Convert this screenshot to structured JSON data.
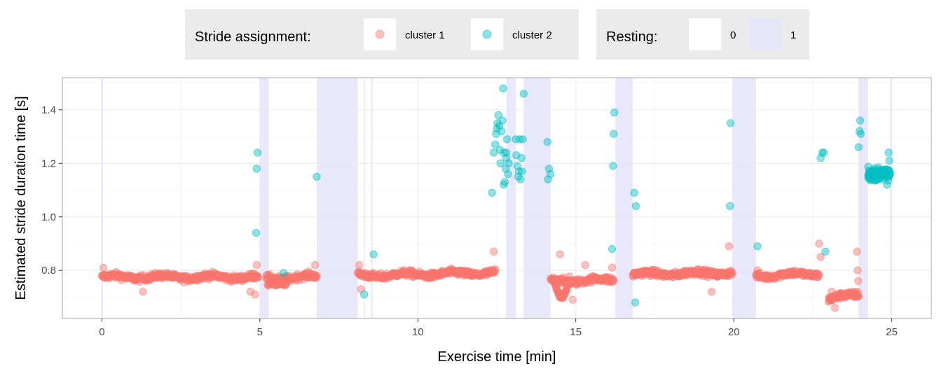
{
  "chart_data": {
    "type": "scatter",
    "title": "",
    "xlabel": "Exercise time [min]",
    "ylabel": "Estimated stride duration time [s]",
    "xlim": [
      -1.25,
      26.25
    ],
    "ylim": [
      0.62,
      1.52
    ],
    "x_ticks": [
      0,
      5,
      10,
      15,
      20,
      25
    ],
    "y_ticks": [
      0.8,
      1.0,
      1.2,
      1.4
    ],
    "x_tick_labels": [
      "0",
      "5",
      "10",
      "15",
      "20",
      "25"
    ],
    "y_tick_labels": [
      "0.8",
      "1.0",
      "1.2",
      "1.4"
    ],
    "grid": true,
    "legend_position": "top",
    "legend": {
      "color_title": "Stride assignment:",
      "color_entries": [
        {
          "label": "cluster 1",
          "color": "#F8766D"
        },
        {
          "label": "cluster 2",
          "color": "#00BFC4"
        }
      ],
      "fill_title": "Resting:",
      "fill_entries": [
        {
          "label": "0",
          "color": "#FFFFFF"
        },
        {
          "label": "1",
          "color": "#E6E6FA"
        }
      ]
    },
    "resting_intervals": [
      [
        -0.02,
        0.03
      ],
      [
        5.0,
        5.28
      ],
      [
        6.8,
        8.1
      ],
      [
        8.3,
        8.33
      ],
      [
        8.52,
        8.57
      ],
      [
        12.8,
        13.1
      ],
      [
        13.35,
        14.2
      ],
      [
        16.25,
        16.8
      ],
      [
        19.95,
        20.7
      ],
      [
        23.95,
        24.25
      ],
      [
        24.95,
        24.99
      ]
    ],
    "cluster1_segments": [
      {
        "start": 0.0,
        "end": 4.95,
        "base": 0.775,
        "slope": 0.0,
        "count": 320
      },
      {
        "start": 5.2,
        "end": 6.8,
        "base": 0.77,
        "slope": 0.004,
        "count": 100
      },
      {
        "start": 8.1,
        "end": 12.45,
        "base": 0.78,
        "slope": 0.0025,
        "count": 280
      },
      {
        "start": 14.2,
        "end": 16.2,
        "base": 0.76,
        "slope": 0.002,
        "count": 120
      },
      {
        "start": 16.8,
        "end": 19.95,
        "base": 0.785,
        "slope": 0.002,
        "count": 220
      },
      {
        "start": 20.7,
        "end": 22.7,
        "base": 0.78,
        "slope": 0.004,
        "count": 120
      },
      {
        "start": 23.0,
        "end": 23.95,
        "base": 0.69,
        "slope": 0.025,
        "count": 80
      }
    ],
    "cluster1_points": [
      {
        "x": 0.05,
        "y": 0.81
      },
      {
        "x": 4.9,
        "y": 0.82
      },
      {
        "x": 4.85,
        "y": 0.71
      },
      {
        "x": 4.7,
        "y": 0.72
      },
      {
        "x": 1.3,
        "y": 0.72
      },
      {
        "x": 6.75,
        "y": 0.82
      },
      {
        "x": 8.15,
        "y": 0.82
      },
      {
        "x": 8.2,
        "y": 0.73
      },
      {
        "x": 12.4,
        "y": 0.87
      },
      {
        "x": 14.5,
        "y": 0.86
      },
      {
        "x": 14.9,
        "y": 0.69
      },
      {
        "x": 15.3,
        "y": 0.82
      },
      {
        "x": 16.15,
        "y": 0.81
      },
      {
        "x": 19.3,
        "y": 0.72
      },
      {
        "x": 19.85,
        "y": 0.89
      },
      {
        "x": 20.75,
        "y": 0.8
      },
      {
        "x": 22.7,
        "y": 0.9
      },
      {
        "x": 22.75,
        "y": 0.85
      },
      {
        "x": 23.9,
        "y": 0.87
      },
      {
        "x": 23.92,
        "y": 0.8
      },
      {
        "x": 23.94,
        "y": 0.76
      },
      {
        "x": 23.1,
        "y": 0.72
      },
      {
        "x": 23.2,
        "y": 0.66
      }
    ],
    "cluster2_points": [
      {
        "x": 4.93,
        "y": 1.24
      },
      {
        "x": 4.9,
        "y": 1.18
      },
      {
        "x": 4.88,
        "y": 0.94
      },
      {
        "x": 5.75,
        "y": 0.79
      },
      {
        "x": 6.8,
        "y": 1.15
      },
      {
        "x": 8.3,
        "y": 0.71
      },
      {
        "x": 8.6,
        "y": 0.86
      },
      {
        "x": 12.35,
        "y": 1.09
      },
      {
        "x": 12.4,
        "y": 1.24
      },
      {
        "x": 12.45,
        "y": 1.27
      },
      {
        "x": 12.48,
        "y": 1.31
      },
      {
        "x": 12.5,
        "y": 1.33
      },
      {
        "x": 12.52,
        "y": 1.35
      },
      {
        "x": 12.55,
        "y": 1.38
      },
      {
        "x": 12.58,
        "y": 1.34
      },
      {
        "x": 12.6,
        "y": 1.25
      },
      {
        "x": 12.62,
        "y": 1.2
      },
      {
        "x": 12.65,
        "y": 1.32
      },
      {
        "x": 12.68,
        "y": 1.36
      },
      {
        "x": 12.7,
        "y": 1.48
      },
      {
        "x": 12.72,
        "y": 1.24
      },
      {
        "x": 12.75,
        "y": 1.13
      },
      {
        "x": 12.78,
        "y": 1.18
      },
      {
        "x": 12.8,
        "y": 1.22
      },
      {
        "x": 12.82,
        "y": 1.29
      },
      {
        "x": 12.85,
        "y": 1.16
      },
      {
        "x": 12.72,
        "y": 1.12
      },
      {
        "x": 12.8,
        "y": 1.24
      },
      {
        "x": 12.88,
        "y": 1.2
      },
      {
        "x": 13.1,
        "y": 1.29
      },
      {
        "x": 13.12,
        "y": 1.23
      },
      {
        "x": 13.15,
        "y": 1.19
      },
      {
        "x": 13.18,
        "y": 1.15
      },
      {
        "x": 13.2,
        "y": 1.17
      },
      {
        "x": 13.22,
        "y": 1.29
      },
      {
        "x": 13.25,
        "y": 1.14
      },
      {
        "x": 13.28,
        "y": 1.22
      },
      {
        "x": 13.3,
        "y": 1.17
      },
      {
        "x": 13.35,
        "y": 1.46
      },
      {
        "x": 13.32,
        "y": 1.29
      },
      {
        "x": 14.1,
        "y": 1.28
      },
      {
        "x": 14.15,
        "y": 1.18
      },
      {
        "x": 14.12,
        "y": 1.14
      },
      {
        "x": 14.2,
        "y": 1.16
      },
      {
        "x": 16.2,
        "y": 1.31
      },
      {
        "x": 16.22,
        "y": 1.39
      },
      {
        "x": 16.18,
        "y": 1.19
      },
      {
        "x": 16.15,
        "y": 0.88
      },
      {
        "x": 16.85,
        "y": 1.09
      },
      {
        "x": 16.9,
        "y": 1.04
      },
      {
        "x": 16.88,
        "y": 0.68
      },
      {
        "x": 19.9,
        "y": 1.35
      },
      {
        "x": 19.88,
        "y": 1.04
      },
      {
        "x": 20.75,
        "y": 0.89
      },
      {
        "x": 22.75,
        "y": 1.22
      },
      {
        "x": 22.8,
        "y": 1.24
      },
      {
        "x": 22.85,
        "y": 1.24
      },
      {
        "x": 22.9,
        "y": 0.87
      },
      {
        "x": 23.95,
        "y": 1.26
      },
      {
        "x": 23.98,
        "y": 1.32
      },
      {
        "x": 24.0,
        "y": 1.36
      },
      {
        "x": 24.02,
        "y": 1.31
      }
    ],
    "cluster2_cloud": {
      "x_start": 24.25,
      "x_end": 24.95,
      "y_center": 1.16,
      "y_spread": 0.04,
      "count": 90
    }
  }
}
